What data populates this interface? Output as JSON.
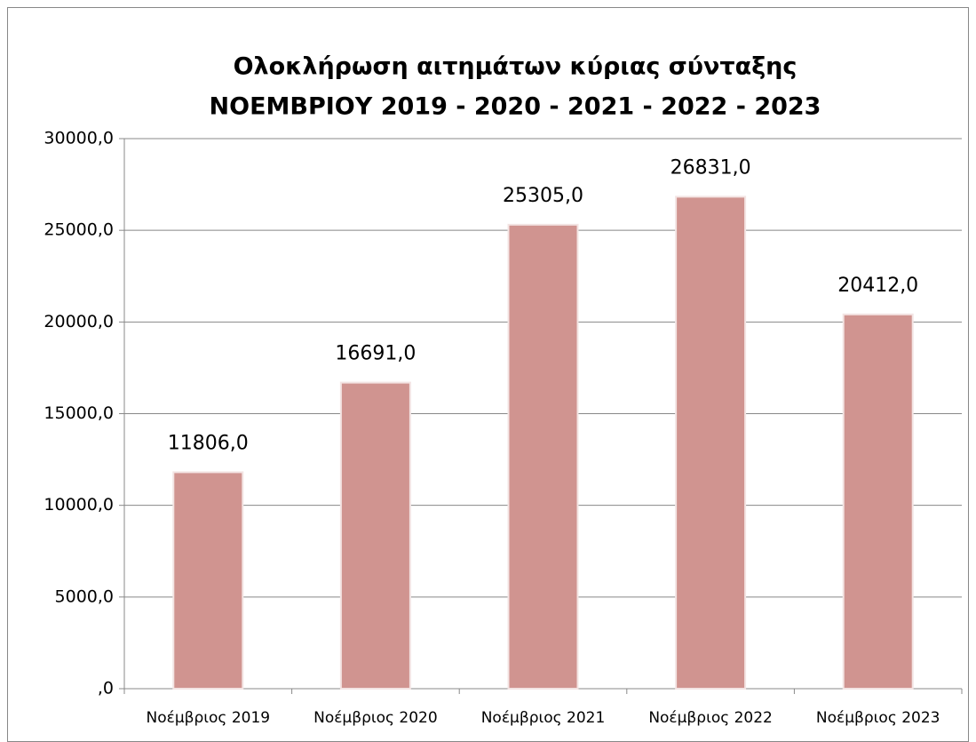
{
  "chart_data": {
    "type": "bar",
    "title": "Ολοκλήρωση αιτημάτων κύριας σύνταξης",
    "subtitle": "ΝΟΕΜΒΡΙΟΥ 2019 - 2020 - 2021 - 2022 - 2023",
    "categories": [
      "Νοέμβριος 2019",
      "Νοέμβριος 2020",
      "Νοέμβριος 2021",
      "Νοέμβριος 2022",
      "Νοέμβριος 2023"
    ],
    "values": [
      11806,
      16691,
      25305,
      26831,
      20412
    ],
    "value_labels": [
      "11806,0",
      "16691,0",
      "25305,0",
      "26831,0",
      "20412,0"
    ],
    "color": "#d09490",
    "ylim": [
      0,
      30000
    ],
    "yticks": [
      {
        "value": 0,
        "label": ",0"
      },
      {
        "value": 5000,
        "label": "5000,0"
      },
      {
        "value": 10000,
        "label": "10000,0"
      },
      {
        "value": 15000,
        "label": "15000,0"
      },
      {
        "value": 20000,
        "label": "20000,0"
      },
      {
        "value": 25000,
        "label": "25000,0"
      },
      {
        "value": 30000,
        "label": "30000,0"
      }
    ],
    "grid": true
  }
}
